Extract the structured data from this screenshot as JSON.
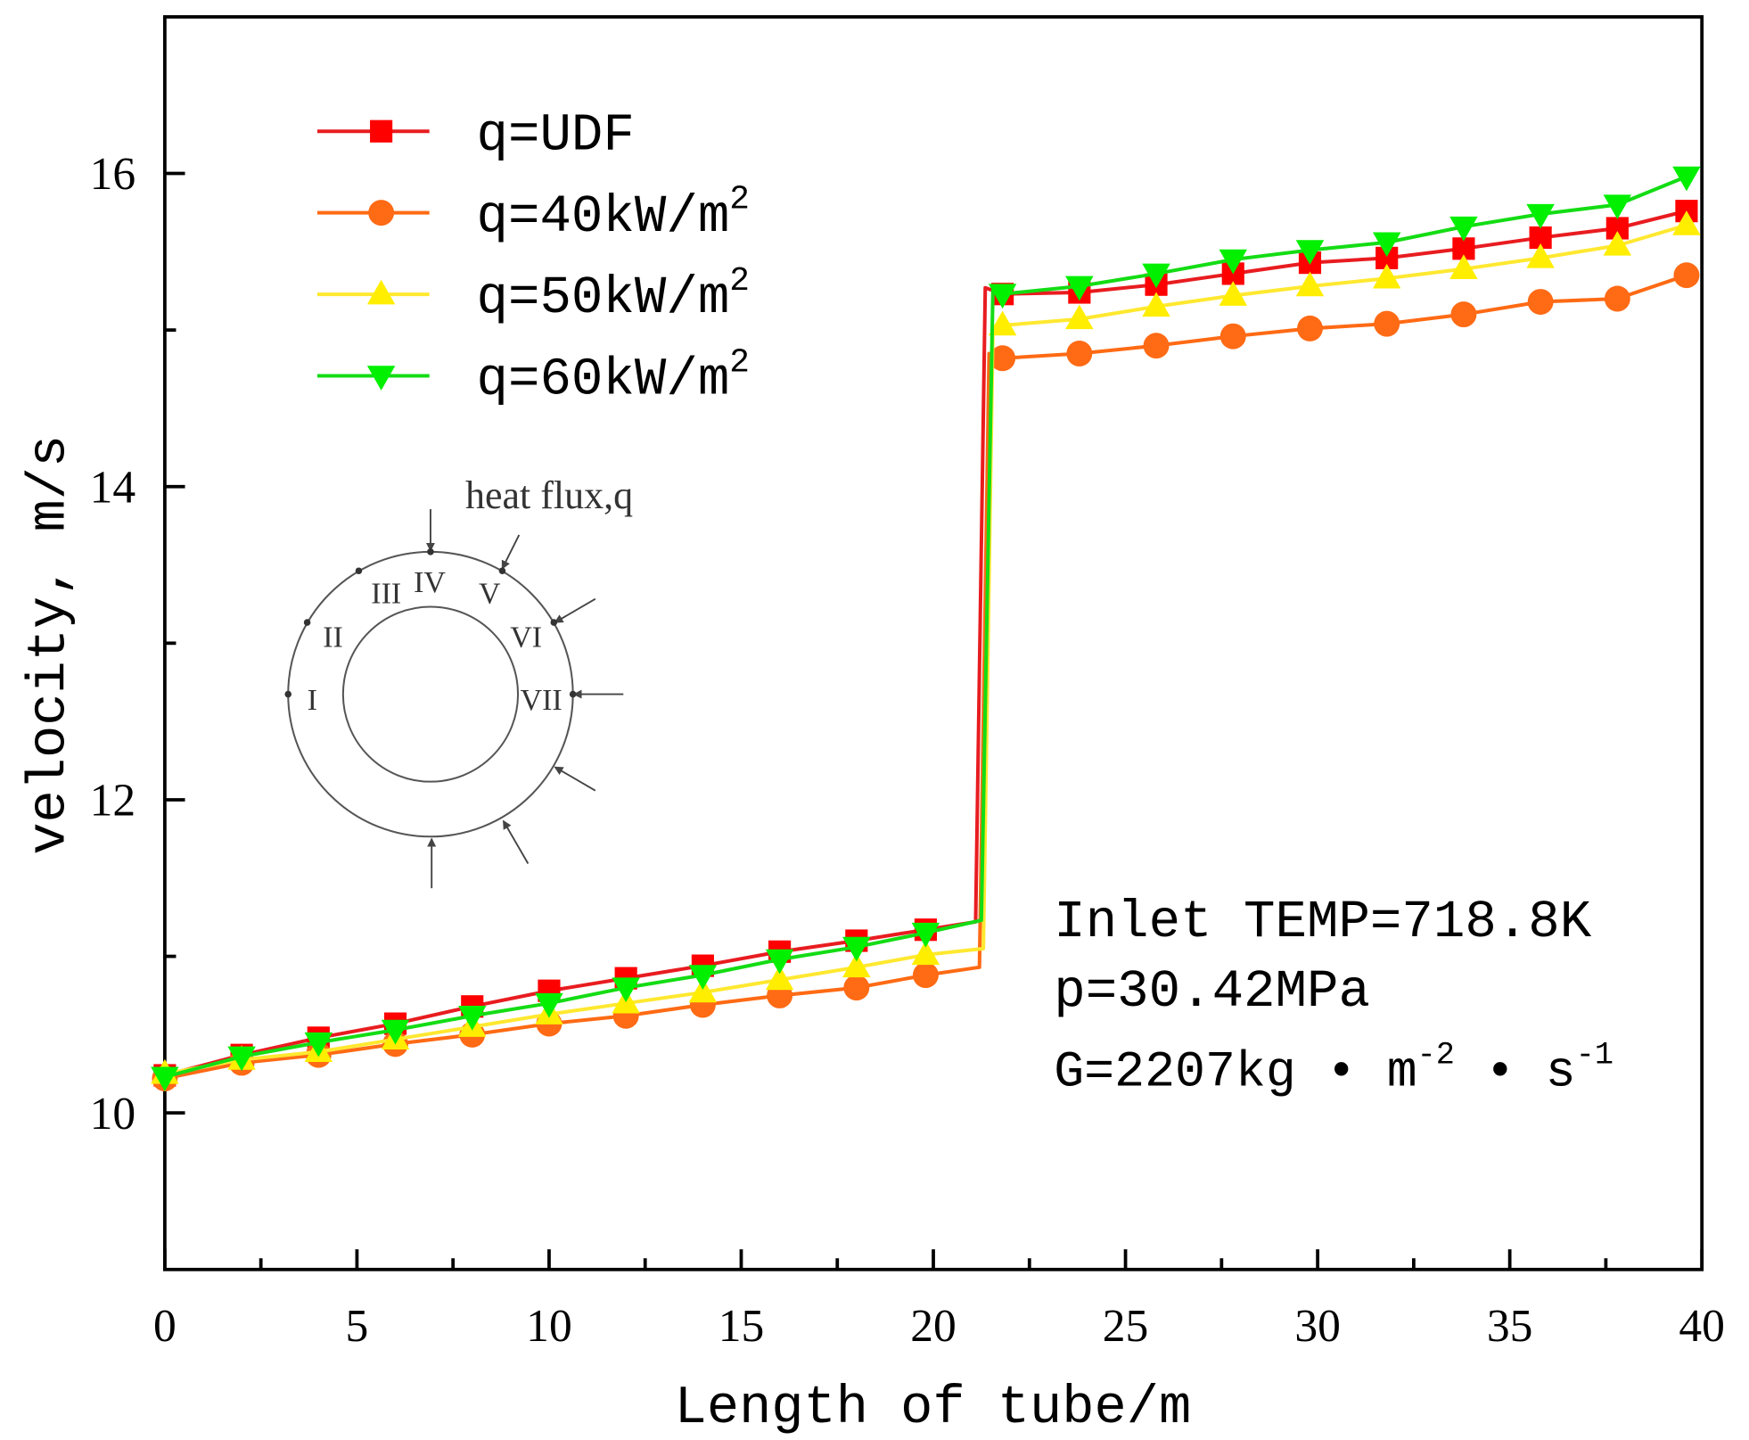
{
  "chart_data": {
    "type": "line",
    "title": "",
    "xlabel": "Length of tube/m",
    "ylabel": "velocity, m/s",
    "xlim": [
      0,
      40
    ],
    "ylim": [
      9,
      17
    ],
    "xticks": [
      0,
      5,
      10,
      15,
      20,
      25,
      30,
      35,
      40
    ],
    "xtick_labels": [
      "0",
      "5",
      "10",
      "15",
      "20",
      "25",
      "30",
      "35",
      "40"
    ],
    "x_minor_ticks": [
      2.5,
      7.5,
      12.5,
      17.5,
      22.5,
      27.5,
      32.5,
      37.5
    ],
    "yticks": [
      10,
      12,
      14,
      16
    ],
    "ytick_labels": [
      "10",
      "12",
      "14",
      "16"
    ],
    "y_minor_ticks": [
      11,
      13,
      15
    ],
    "grid": false,
    "legend_position": "top-left",
    "series": [
      {
        "label": "q=UDF",
        "label_sup": "",
        "color": "#e81c20",
        "marker_color": "#ff0000",
        "marker": "square",
        "x": [
          0,
          2,
          4,
          6,
          8,
          10,
          12,
          14,
          16,
          18,
          19.8,
          21.8,
          23.8,
          25.8,
          27.8,
          29.8,
          31.8,
          33.8,
          35.8,
          37.8,
          39.6
        ],
        "y": [
          10.24,
          10.37,
          10.48,
          10.57,
          10.68,
          10.78,
          10.86,
          10.94,
          11.03,
          11.1,
          11.17,
          15.23,
          15.24,
          15.29,
          15.36,
          15.43,
          15.46,
          15.52,
          15.59,
          15.65,
          15.76
        ],
        "jump": {
          "x": [
            21.1,
            21.35
          ],
          "y": [
            11.22,
            15.27
          ]
        }
      },
      {
        "label": "q=40kW/m",
        "label_sup": "2",
        "color": "#ff6a14",
        "marker_color": "#ff6a14",
        "marker": "circle",
        "x": [
          0,
          2,
          4,
          6,
          8,
          10,
          12,
          14,
          16,
          18,
          19.8,
          21.8,
          23.8,
          25.8,
          27.8,
          29.8,
          31.8,
          33.8,
          35.8,
          37.8,
          39.6
        ],
        "y": [
          10.22,
          10.32,
          10.37,
          10.44,
          10.5,
          10.57,
          10.62,
          10.69,
          10.75,
          10.8,
          10.88,
          14.82,
          14.85,
          14.9,
          14.96,
          15.01,
          15.04,
          15.1,
          15.18,
          15.2,
          15.35
        ],
        "jump": {
          "x": [
            21.2,
            21.45
          ],
          "y": [
            10.93,
            14.85
          ]
        }
      },
      {
        "label": "q=50kW/m",
        "label_sup": "2",
        "color": "#ffe830",
        "marker_color": "#ffee00",
        "marker": "triangle-up",
        "x": [
          0,
          2,
          4,
          6,
          8,
          10,
          12,
          14,
          16,
          18,
          19.8,
          21.8,
          23.8,
          25.8,
          27.8,
          29.8,
          31.8,
          33.8,
          35.8,
          37.8,
          39.6
        ],
        "y": [
          10.25,
          10.34,
          10.39,
          10.47,
          10.55,
          10.63,
          10.7,
          10.77,
          10.85,
          10.93,
          11.01,
          15.03,
          15.07,
          15.15,
          15.22,
          15.28,
          15.33,
          15.39,
          15.46,
          15.54,
          15.67
        ],
        "jump": {
          "x": [
            21.3,
            21.55
          ],
          "y": [
            11.05,
            15.0
          ]
        }
      },
      {
        "label": "q=60kW/m",
        "label_sup": "2",
        "color": "#14dc14",
        "marker_color": "#00f000",
        "marker": "triangle-down",
        "x": [
          0,
          2,
          4,
          6,
          8,
          10,
          12,
          14,
          16,
          18,
          19.8,
          21.8,
          23.8,
          25.8,
          27.8,
          29.8,
          31.8,
          33.8,
          35.8,
          37.8,
          39.6
        ],
        "y": [
          10.23,
          10.36,
          10.45,
          10.53,
          10.62,
          10.7,
          10.8,
          10.88,
          10.98,
          11.06,
          11.15,
          15.23,
          15.28,
          15.36,
          15.45,
          15.51,
          15.56,
          15.66,
          15.74,
          15.8,
          15.98
        ],
        "jump": {
          "x": [
            21.25,
            21.55
          ],
          "y": [
            11.23,
            15.25
          ]
        }
      }
    ],
    "annotations": {
      "inlet_temp": "Inlet TEMP=718.8K",
      "pressure": "p=30.42MPa",
      "mass_flux": [
        "G=2207kg • m",
        "-2",
        " • s",
        "-1"
      ]
    }
  },
  "inset": {
    "heat_flux_label": "heat flux,q",
    "position_labels": [
      "I",
      "II",
      "III",
      "IV",
      "V",
      "VI",
      "VII"
    ]
  }
}
